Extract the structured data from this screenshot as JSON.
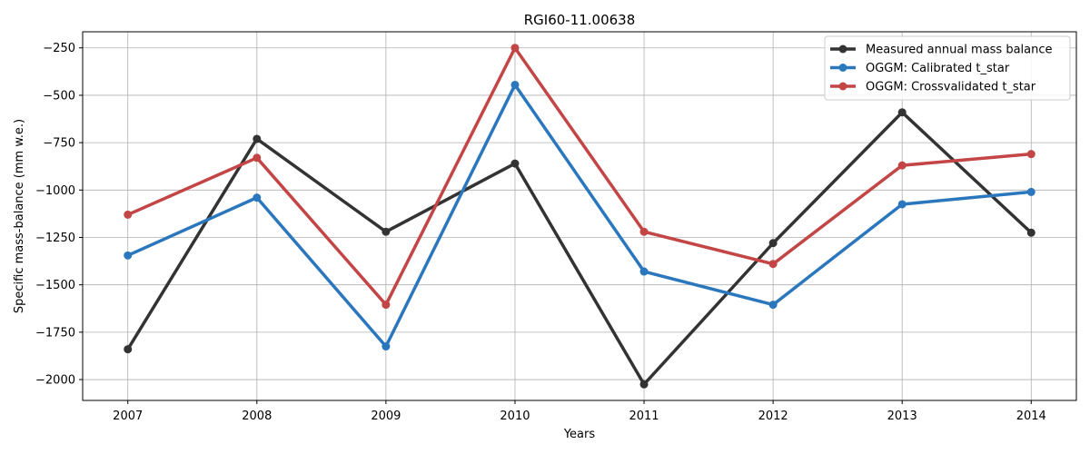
{
  "chart_data": {
    "type": "line",
    "title": "RGI60-11.00638",
    "xlabel": "Years",
    "ylabel": "Specific mass-balance (mm w.e.)",
    "categories": [
      "2007",
      "2008",
      "2009",
      "2010",
      "2011",
      "2012",
      "2013",
      "2014"
    ],
    "x": [
      2007,
      2008,
      2009,
      2010,
      2011,
      2012,
      2013,
      2014
    ],
    "xlim": [
      2006.65,
      2014.35
    ],
    "ylim": [
      -2110,
      -165
    ],
    "yticks": [
      -2000,
      -1750,
      -1500,
      -1250,
      -1000,
      -750,
      -500,
      -250
    ],
    "ytick_labels": [
      "−2000",
      "−1750",
      "−1500",
      "−1250",
      "−1000",
      "−750",
      "−500",
      "−250"
    ],
    "grid": true,
    "legend_position": "top-right",
    "series": [
      {
        "name": "Measured annual mass balance",
        "color": "#333333",
        "values": [
          -1840,
          -730,
          -1220,
          -860,
          -2025,
          -1280,
          -590,
          -1225
        ]
      },
      {
        "name": "OGGM: Calibrated t_star",
        "color": "#2b77be",
        "values": [
          -1345,
          -1040,
          -1825,
          -445,
          -1430,
          -1605,
          -1075,
          -1010
        ]
      },
      {
        "name": "OGGM: Crossvalidated t_star",
        "color": "#c44545",
        "values": [
          -1130,
          -830,
          -1605,
          -250,
          -1220,
          -1390,
          -870,
          -810
        ]
      }
    ]
  }
}
